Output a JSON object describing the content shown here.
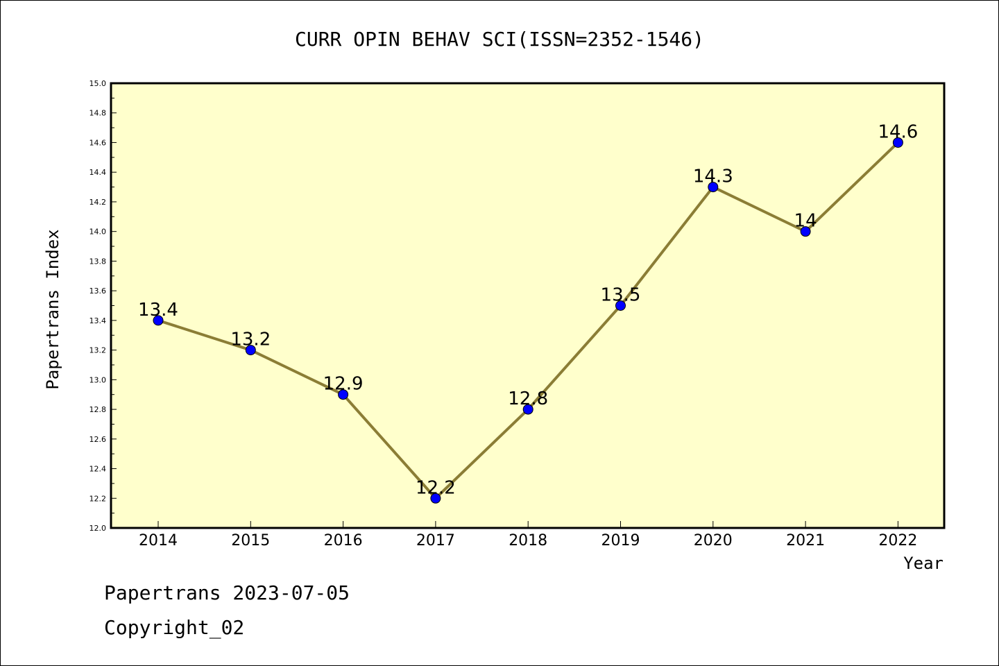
{
  "chart_data": {
    "type": "line",
    "title": "CURR OPIN BEHAV SCI(ISSN=2352-1546)",
    "xlabel": "Year",
    "ylabel": "Papertrans Index",
    "categories": [
      "2014",
      "2015",
      "2016",
      "2017",
      "2018",
      "2019",
      "2020",
      "2021",
      "2022"
    ],
    "values": [
      13.4,
      13.2,
      12.9,
      12.2,
      12.8,
      13.5,
      14.3,
      14.0,
      14.6
    ],
    "data_labels": [
      "13.4",
      "13.2",
      "12.9",
      "12.2",
      "12.8",
      "13.5",
      "14.3",
      "14",
      "14.6"
    ],
    "ylim": [
      12.0,
      15.0
    ],
    "yticks": [
      "12.0",
      "12.2",
      "12.4",
      "12.6",
      "12.8",
      "13.0",
      "13.2",
      "13.4",
      "13.6",
      "13.8",
      "14.0",
      "14.2",
      "14.4",
      "14.6",
      "14.8",
      "15.0"
    ],
    "grid": false,
    "legend": "none",
    "colors": {
      "plot_background": "#ffffcc",
      "line": "#8b7d35",
      "marker": "#0000ff",
      "axis": "#000000"
    }
  },
  "footer": {
    "line1": "Papertrans 2023-07-05",
    "line2": "Copyright_02"
  }
}
